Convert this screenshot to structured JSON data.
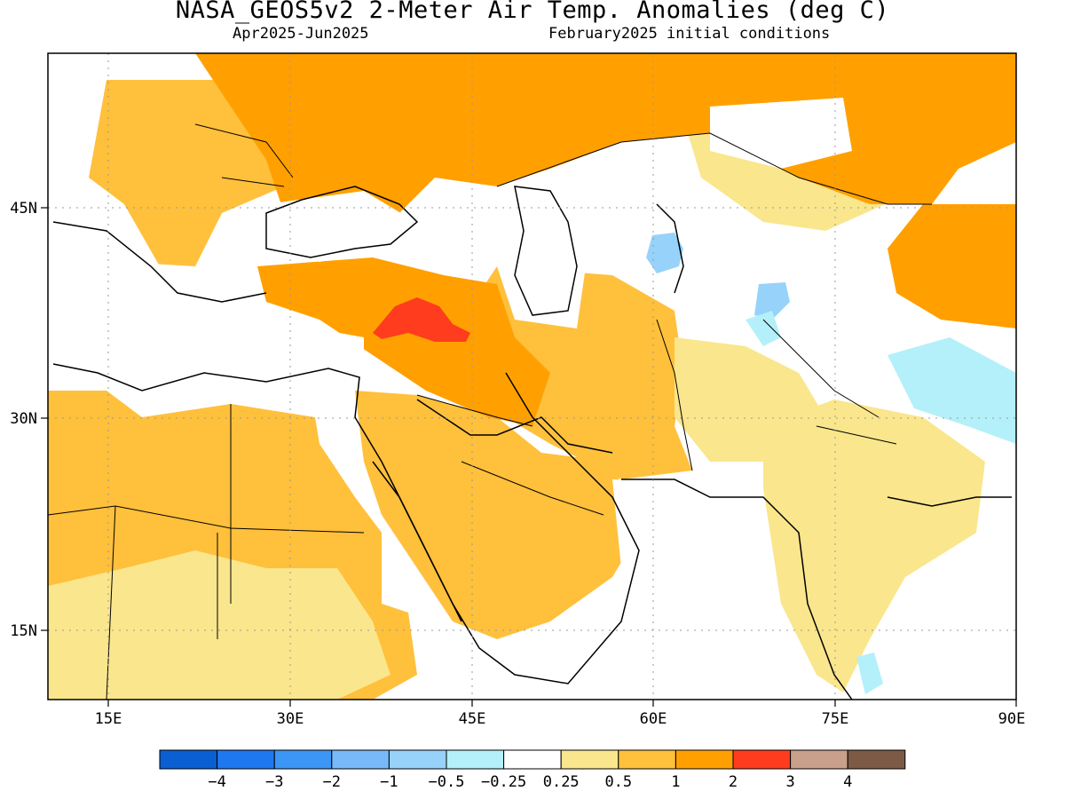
{
  "title": "NASA_GEOS5v2 2-Meter Air Temp. Anomalies (deg C)",
  "subtitle_left": "Apr2025-Jun2025",
  "subtitle_right": "February2025 initial conditions",
  "map": {
    "lon_range": [
      10,
      90
    ],
    "lat_range": [
      10,
      55
    ],
    "x_ticks": [
      "15E",
      "30E",
      "45E",
      "60E",
      "75E",
      "90E"
    ],
    "y_ticks": [
      "45N",
      "30N",
      "15N"
    ]
  },
  "legend": {
    "labels": [
      "-4",
      "-3",
      "-2",
      "-1",
      "-0.5",
      "-0.25",
      "0.25",
      "0.5",
      "1",
      "2",
      "3",
      "4"
    ],
    "colors": [
      "#0a5fd2",
      "#1e78f0",
      "#3c96f5",
      "#78b9fa",
      "#96d2fa",
      "#b4f0fa",
      "#ffffff",
      "#fae68c",
      "#ffc03c",
      "#ffa000",
      "#ff3c1e",
      "#c8a08c",
      "#7d5a46"
    ]
  }
}
